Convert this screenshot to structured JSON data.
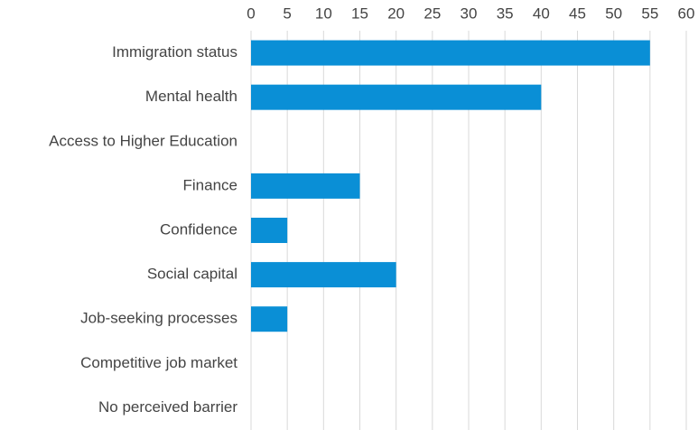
{
  "chart_data": {
    "type": "bar",
    "orientation": "horizontal",
    "categories": [
      "Immigration status",
      "Mental health",
      "Access to Higher Education",
      "Finance",
      "Confidence",
      "Social capital",
      "Job-seeking processes",
      "Competitive job market",
      "No perceived barrier"
    ],
    "values": [
      55,
      40,
      0,
      15,
      5,
      20,
      5,
      0,
      0
    ],
    "color": "#0a8fd6",
    "xlim": [
      0,
      60
    ],
    "xticks": [
      0,
      5,
      10,
      15,
      20,
      25,
      30,
      35,
      40,
      45,
      50,
      55,
      60
    ],
    "grid": true
  }
}
